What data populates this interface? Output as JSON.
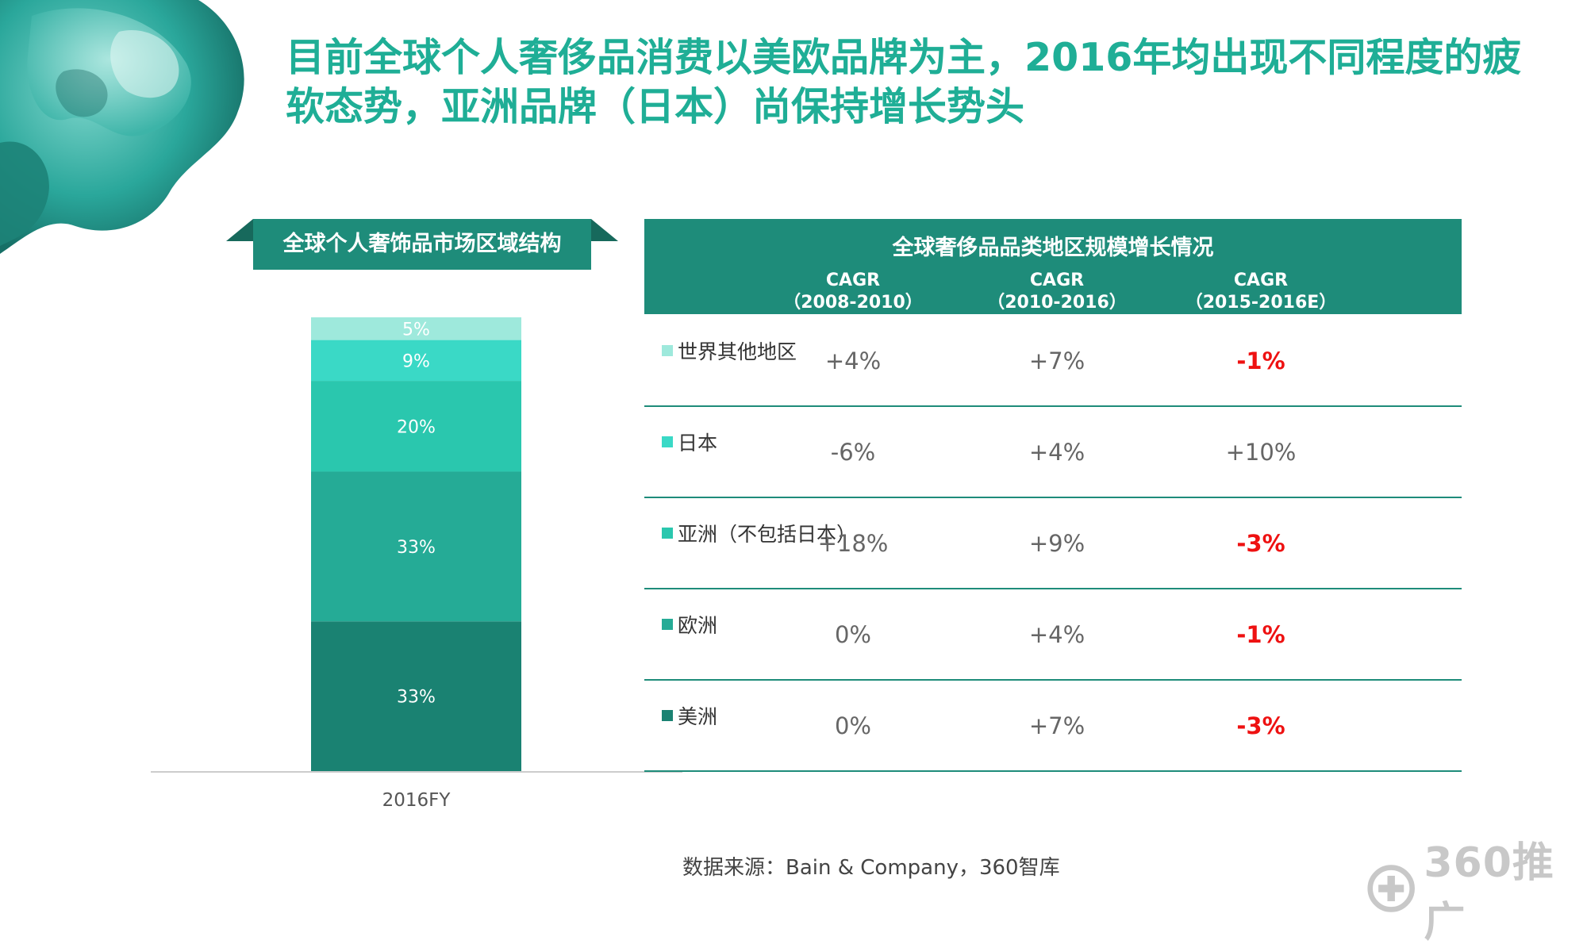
{
  "title": "目前全球个人奢侈品消费以美欧品牌为主，2016年均出现不同程度的疲软态势，亚洲品牌（日本）尚保持增长势头",
  "left_heading": "全球个人奢饰品市场区域结构",
  "chart_data": {
    "type": "bar",
    "stacked": true,
    "categories": [
      "2016FY"
    ],
    "series": [
      {
        "name": "美洲",
        "values": [
          33
        ],
        "label": "33%",
        "color": "#1a8272"
      },
      {
        "name": "欧洲",
        "values": [
          33
        ],
        "label": "33%",
        "color": "#25ab96"
      },
      {
        "name": "亚洲（不包括日本）",
        "values": [
          20
        ],
        "label": "20%",
        "color": "#2ac7ae"
      },
      {
        "name": "日本",
        "values": [
          9
        ],
        "label": "9%",
        "color": "#3ad9c6"
      },
      {
        "name": "世界其他地区",
        "values": [
          5
        ],
        "label": "5%",
        "color": "#9ee9dc"
      }
    ],
    "ylim": [
      0,
      100
    ]
  },
  "table": {
    "title": "全球奢侈品品类地区规模增长情况",
    "columns": [
      {
        "line1": "CAGR",
        "line2": "（2008-2010）"
      },
      {
        "line1": "CAGR",
        "line2": "（2010-2016）"
      },
      {
        "line1": "CAGR",
        "line2": "（2015-2016E）"
      }
    ],
    "rows": [
      {
        "region": "世界其他地区",
        "color": "#9ee9dc",
        "values": [
          "+4%",
          "+7%",
          "-1%"
        ],
        "negative": [
          false,
          false,
          true
        ]
      },
      {
        "region": "日本",
        "color": "#3ad9c6",
        "values": [
          "-6%",
          "+4%",
          "+10%"
        ],
        "negative": [
          false,
          false,
          false
        ]
      },
      {
        "region": "亚洲（不包括日本）",
        "color": "#2ac7ae",
        "values": [
          "+18%",
          "+9%",
          "-3%"
        ],
        "negative": [
          false,
          false,
          true
        ]
      },
      {
        "region": "欧洲",
        "color": "#25ab96",
        "values": [
          "0%",
          "+4%",
          "-1%"
        ],
        "negative": [
          false,
          false,
          true
        ]
      },
      {
        "region": "美洲",
        "color": "#1a8272",
        "values": [
          "0%",
          "+7%",
          "-3%"
        ],
        "negative": [
          false,
          false,
          true
        ]
      }
    ]
  },
  "source": "数据来源：Bain & Company，360智库",
  "logo": {
    "text": "360推广",
    "icon": "plus-circle-icon"
  }
}
